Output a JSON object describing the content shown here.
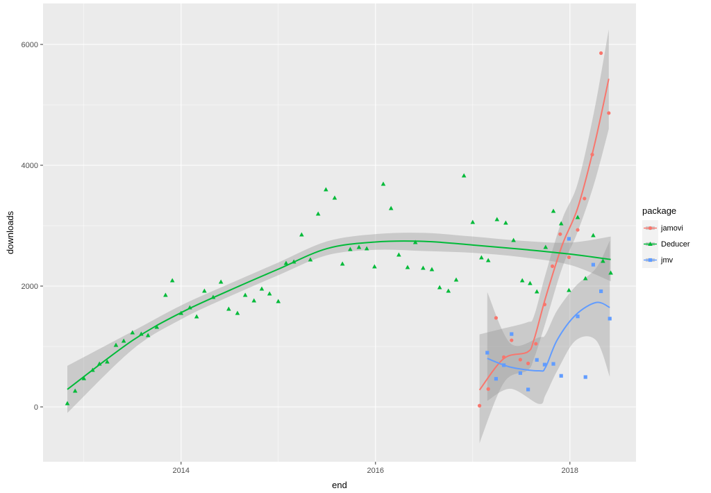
{
  "chart_data": {
    "type": "scatter",
    "title": "",
    "xlabel": "end",
    "ylabel": "downloads",
    "xlim": [
      2012.58,
      2018.68
    ],
    "ylim": [
      -908,
      6678
    ],
    "x_ticks": [
      2014,
      2016,
      2018
    ],
    "x_tick_labels": [
      "2014",
      "2016",
      "2018"
    ],
    "y_ticks": [
      0,
      2000,
      4000,
      6000
    ],
    "y_tick_labels": [
      "0",
      "2000",
      "4000",
      "6000"
    ],
    "grid": true,
    "legend": {
      "title": "package",
      "placement": "right"
    },
    "series": [
      {
        "name": "jamovi",
        "color": "#F8766D",
        "shape": "circle",
        "points": [
          [
            2017.07,
            20
          ],
          [
            2017.16,
            296
          ],
          [
            2017.24,
            1473
          ],
          [
            2017.32,
            823
          ],
          [
            2017.4,
            1103
          ],
          [
            2017.49,
            782
          ],
          [
            2017.57,
            720
          ],
          [
            2017.65,
            1045
          ],
          [
            2017.74,
            1695
          ],
          [
            2017.82,
            2329
          ],
          [
            2017.9,
            2860
          ],
          [
            2017.99,
            2477
          ],
          [
            2018.08,
            2930
          ],
          [
            2018.15,
            3449
          ],
          [
            2018.23,
            4177
          ],
          [
            2018.32,
            5856
          ],
          [
            2018.4,
            4864
          ]
        ],
        "smooth": [
          [
            2017.07,
            280,
            -600,
            1200
          ],
          [
            2017.32,
            800,
            400,
            1300
          ],
          [
            2017.56,
            905,
            600,
            1400
          ],
          [
            2017.63,
            1111,
            800,
            1500
          ],
          [
            2017.75,
            1810,
            1400,
            2200
          ],
          [
            2017.92,
            2675,
            2300,
            3100
          ],
          [
            2018.08,
            3292,
            2900,
            3700
          ],
          [
            2018.25,
            4321,
            3700,
            4900
          ],
          [
            2018.4,
            5432,
            4600,
            6250
          ]
        ]
      },
      {
        "name": "Deducer",
        "color": "#00BA38",
        "shape": "triangle",
        "points": [
          [
            2012.83,
            57
          ],
          [
            2012.91,
            264
          ],
          [
            2013.0,
            471
          ],
          [
            2013.09,
            609
          ],
          [
            2013.16,
            713
          ],
          [
            2013.24,
            747
          ],
          [
            2013.33,
            1023
          ],
          [
            2013.41,
            1092
          ],
          [
            2013.5,
            1230
          ],
          [
            2013.59,
            1207
          ],
          [
            2013.66,
            1184
          ],
          [
            2013.75,
            1322
          ],
          [
            2013.84,
            1851
          ],
          [
            2013.91,
            2092
          ],
          [
            2014.0,
            1552
          ],
          [
            2014.09,
            1644
          ],
          [
            2014.16,
            1494
          ],
          [
            2014.24,
            1920
          ],
          [
            2014.33,
            1816
          ],
          [
            2014.41,
            2069
          ],
          [
            2014.49,
            1621
          ],
          [
            2014.58,
            1552
          ],
          [
            2014.66,
            1851
          ],
          [
            2014.75,
            1759
          ],
          [
            2014.83,
            1954
          ],
          [
            2014.91,
            1874
          ],
          [
            2015.0,
            1747
          ],
          [
            2015.08,
            2379
          ],
          [
            2015.16,
            2402
          ],
          [
            2015.24,
            2851
          ],
          [
            2015.33,
            2437
          ],
          [
            2015.41,
            3195
          ],
          [
            2015.49,
            3598
          ],
          [
            2015.58,
            3460
          ],
          [
            2015.66,
            2368
          ],
          [
            2015.74,
            2609
          ],
          [
            2015.83,
            2644
          ],
          [
            2015.91,
            2621
          ],
          [
            2015.99,
            2322
          ],
          [
            2016.08,
            3690
          ],
          [
            2016.16,
            3287
          ],
          [
            2016.24,
            2517
          ],
          [
            2016.33,
            2310
          ],
          [
            2016.41,
            2724
          ],
          [
            2016.49,
            2299
          ],
          [
            2016.58,
            2276
          ],
          [
            2016.66,
            1977
          ],
          [
            2016.75,
            1920
          ],
          [
            2016.83,
            2103
          ],
          [
            2016.91,
            3828
          ],
          [
            2017.0,
            3057
          ],
          [
            2017.09,
            2471
          ],
          [
            2017.16,
            2425
          ],
          [
            2017.25,
            3103
          ],
          [
            2017.34,
            3046
          ],
          [
            2017.42,
            2759
          ],
          [
            2017.51,
            2092
          ],
          [
            2017.59,
            2046
          ],
          [
            2017.66,
            1908
          ],
          [
            2017.75,
            2644
          ],
          [
            2017.83,
            3241
          ],
          [
            2017.91,
            3034
          ],
          [
            2017.99,
            1931
          ],
          [
            2018.08,
            3138
          ],
          [
            2018.16,
            2126
          ],
          [
            2018.24,
            2839
          ],
          [
            2018.34,
            2414
          ],
          [
            2018.42,
            2218
          ]
        ],
        "smooth": [
          [
            2012.83,
            290,
            -100,
            680
          ],
          [
            2013.5,
            1100,
            950,
            1250
          ],
          [
            2014.0,
            1560,
            1450,
            1680
          ],
          [
            2014.5,
            1930,
            1830,
            2040
          ],
          [
            2015.0,
            2280,
            2180,
            2390
          ],
          [
            2015.5,
            2620,
            2510,
            2740
          ],
          [
            2016.0,
            2730,
            2600,
            2860
          ],
          [
            2016.5,
            2740,
            2580,
            2880
          ],
          [
            2017.0,
            2680,
            2550,
            2820
          ],
          [
            2017.5,
            2610,
            2480,
            2750
          ],
          [
            2018.0,
            2530,
            2350,
            2720
          ],
          [
            2018.42,
            2440,
            2080,
            2820
          ]
        ]
      },
      {
        "name": "jmv",
        "color": "#619CFF",
        "shape": "square",
        "points": [
          [
            2017.15,
            897
          ],
          [
            2017.24,
            465
          ],
          [
            2017.32,
            691
          ],
          [
            2017.4,
            1206
          ],
          [
            2017.49,
            560
          ],
          [
            2017.57,
            288
          ],
          [
            2017.66,
            778
          ],
          [
            2017.74,
            700
          ],
          [
            2017.83,
            712
          ],
          [
            2017.91,
            514
          ],
          [
            2017.99,
            2782
          ],
          [
            2018.08,
            1498
          ],
          [
            2018.16,
            494
          ],
          [
            2018.24,
            2354
          ],
          [
            2018.32,
            1914
          ],
          [
            2018.41,
            1461
          ]
        ],
        "smooth": [
          [
            2017.15,
            802,
            100,
            1900
          ],
          [
            2017.39,
            658,
            300,
            1050
          ],
          [
            2017.68,
            597,
            50,
            1150
          ],
          [
            2017.75,
            658,
            200,
            1200
          ],
          [
            2017.87,
            1111,
            600,
            1600
          ],
          [
            2018.06,
            1523,
            1100,
            2000
          ],
          [
            2018.27,
            1728,
            1100,
            2300
          ],
          [
            2018.41,
            1646,
            500,
            2750
          ]
        ]
      }
    ]
  }
}
